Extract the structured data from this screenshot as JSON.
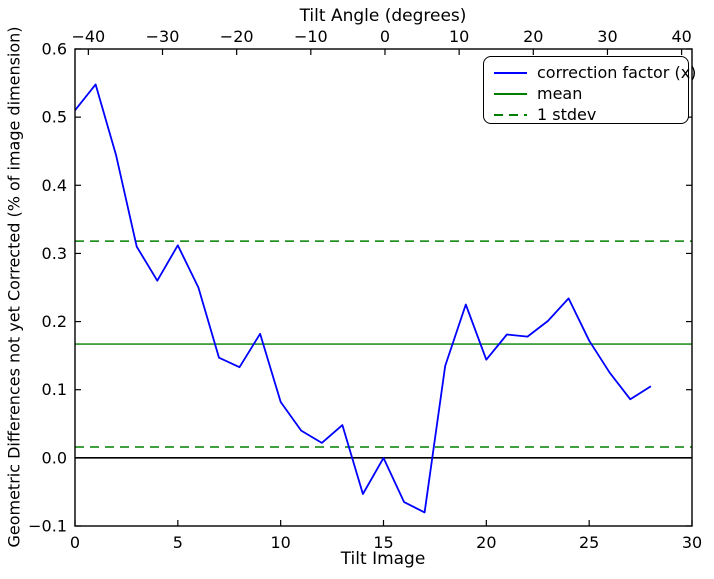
{
  "figure": {
    "background": "#ffffff",
    "frame_color": "#000000"
  },
  "chart_data": {
    "type": "line",
    "top_axis": {
      "label": "Tilt Angle (degrees)",
      "tick_values": [
        -40,
        -30,
        -20,
        -10,
        0,
        10,
        20,
        30,
        40
      ],
      "tick_labels": [
        "−40",
        "−30",
        "−20",
        "−10",
        "0",
        "10",
        "20",
        "30",
        "40"
      ],
      "range": [
        -41.8,
        41.4
      ]
    },
    "x_axis": {
      "label": "Tilt Image",
      "tick_values": [
        0,
        5,
        10,
        15,
        20,
        25,
        30
      ],
      "tick_labels": [
        "0",
        "5",
        "10",
        "15",
        "20",
        "25",
        "30"
      ],
      "range": [
        0,
        30
      ]
    },
    "y_axis": {
      "label": "Geometric Differences not yet Corrected (% of image dimension)",
      "tick_values": [
        -0.1,
        0.0,
        0.1,
        0.2,
        0.3,
        0.4,
        0.5,
        0.6
      ],
      "tick_labels": [
        "−0.1",
        "0.0",
        "0.1",
        "0.2",
        "0.3",
        "0.4",
        "0.5",
        "0.6"
      ],
      "range": [
        -0.1,
        0.6
      ],
      "grid": false
    },
    "series": [
      {
        "name": "correction factor (x)",
        "color": "#0000ff",
        "style": "solid",
        "x": [
          0,
          1,
          2,
          3,
          4,
          5,
          6,
          7,
          8,
          9,
          10,
          11,
          12,
          13,
          14,
          15,
          16,
          17,
          18,
          19,
          20,
          21,
          22,
          23,
          24,
          25,
          26,
          27,
          28
        ],
        "y": [
          0.51,
          0.548,
          0.444,
          0.31,
          0.26,
          0.312,
          0.25,
          0.147,
          0.133,
          0.182,
          0.082,
          0.04,
          0.022,
          0.048,
          -0.053,
          0.0,
          -0.065,
          -0.08,
          0.135,
          0.225,
          0.144,
          0.181,
          0.178,
          0.201,
          0.234,
          0.172,
          0.125,
          0.086,
          0.105
        ]
      }
    ],
    "stats": {
      "mean": 0.167,
      "stdev": 0.151
    },
    "hlines": [
      {
        "name": "zero-line",
        "y": 0.0,
        "color": "#000000",
        "dash": "",
        "width": 1.6
      },
      {
        "name": "mean-line",
        "y": 0.167,
        "color": "#008000",
        "dash": "",
        "width": 1.3
      },
      {
        "name": "stdev-upper-line",
        "y": 0.318,
        "color": "#008000",
        "dash": "9 6",
        "width": 1.5
      },
      {
        "name": "stdev-lower-line",
        "y": 0.016,
        "color": "#008000",
        "dash": "9 6",
        "width": 1.5
      }
    ],
    "legend": {
      "position": "upper right",
      "entries": [
        "correction factor (x)",
        "mean",
        "1 stdev"
      ],
      "samples": [
        {
          "color": "#0000ff",
          "dash": false
        },
        {
          "color": "#008000",
          "dash": false
        },
        {
          "color": "#008000",
          "dash": true
        }
      ]
    }
  }
}
